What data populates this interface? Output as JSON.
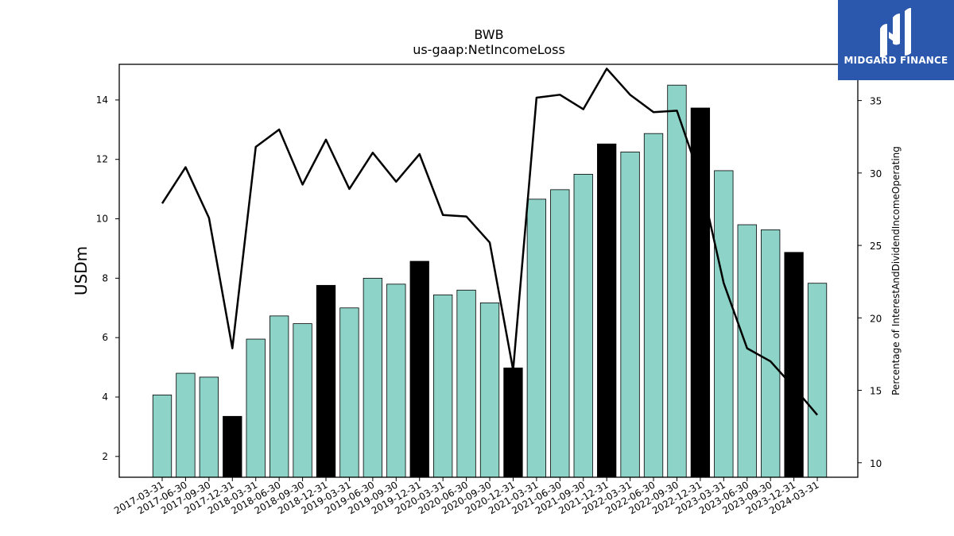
{
  "chart_data": {
    "type": "bar",
    "title": "BWB",
    "subtitle": "us-gaap:NetIncomeLoss",
    "ylabel": "USDm",
    "ylabel_right": "Percentage of InterestAndDividendIncomeOperating",
    "ylim": [
      1.3,
      15.2
    ],
    "ylim_right": [
      9,
      37.5
    ],
    "yticks": [
      2,
      4,
      6,
      8,
      10,
      12,
      14
    ],
    "yticks_right": [
      10,
      15,
      20,
      25,
      30,
      35
    ],
    "categories": [
      "2017-03-31",
      "2017-06-30",
      "2017-09-30",
      "2017-12-31",
      "2018-03-31",
      "2018-06-30",
      "2018-09-30",
      "2018-12-31",
      "2019-03-31",
      "2019-06-30",
      "2019-09-30",
      "2019-12-31",
      "2020-03-31",
      "2020-06-30",
      "2020-09-30",
      "2020-12-31",
      "2021-03-31",
      "2021-06-30",
      "2021-09-30",
      "2021-12-31",
      "2022-03-31",
      "2022-06-30",
      "2022-09-30",
      "2022-12-31",
      "2023-03-31",
      "2023-06-30",
      "2023-09-30",
      "2023-12-31",
      "2024-03-31"
    ],
    "series": [
      {
        "type": "bar",
        "axis": "left",
        "values": [
          4.07,
          4.8,
          4.67,
          3.35,
          5.95,
          6.73,
          6.47,
          7.76,
          7.0,
          8.0,
          7.8,
          8.57,
          7.44,
          7.6,
          7.17,
          4.98,
          10.66,
          10.98,
          11.5,
          12.52,
          12.25,
          12.87,
          14.5,
          13.73,
          11.62,
          9.8,
          9.63,
          8.87,
          7.83
        ],
        "highlight": [
          false,
          false,
          false,
          true,
          false,
          false,
          false,
          true,
          false,
          false,
          false,
          true,
          false,
          false,
          false,
          true,
          false,
          false,
          false,
          true,
          false,
          false,
          false,
          true,
          false,
          false,
          false,
          true,
          false
        ]
      },
      {
        "type": "line",
        "axis": "right",
        "values": [
          27.9,
          30.4,
          26.9,
          17.9,
          31.8,
          33.0,
          29.2,
          32.3,
          28.9,
          31.4,
          29.4,
          31.3,
          27.1,
          27.0,
          25.2,
          16.4,
          35.2,
          35.4,
          34.4,
          37.2,
          35.4,
          34.2,
          34.3,
          29.6,
          22.4,
          17.9,
          17.0,
          15.2,
          13.3
        ]
      }
    ],
    "colors": {
      "bar": "#8dd3c7",
      "bar_highlight": "#000000",
      "line": "#000000",
      "logo_bg": "#2b57ad"
    },
    "grid": false,
    "legend": "none"
  },
  "logo": {
    "name": "MIDGARD FINANCE",
    "icon": "midgard-logo-icon"
  }
}
